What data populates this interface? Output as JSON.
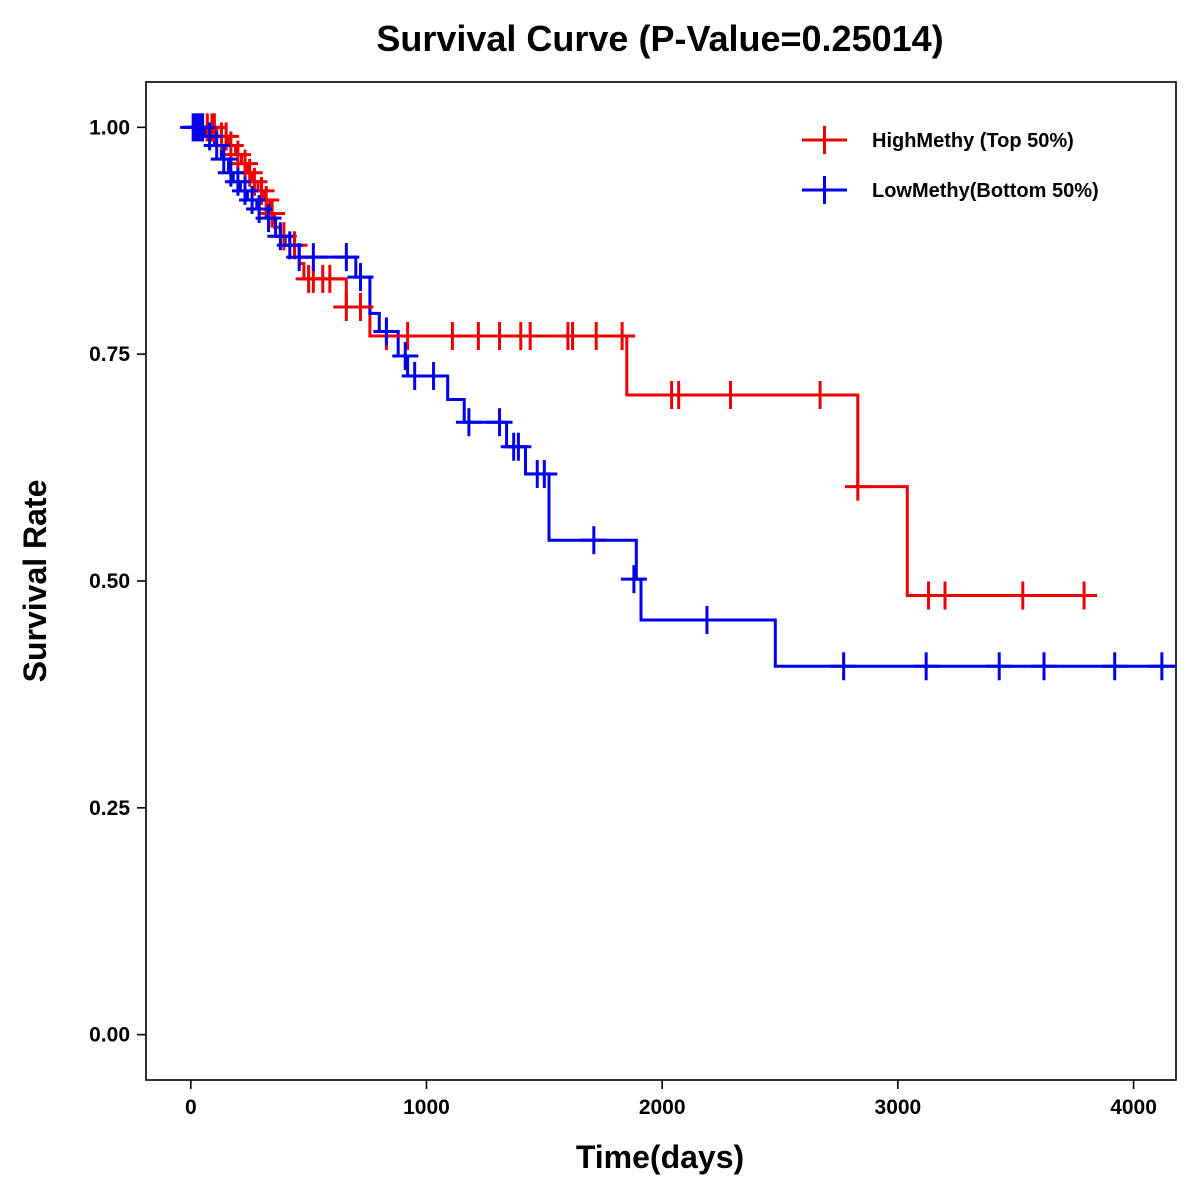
{
  "chart_data": {
    "type": "line",
    "subtype": "kaplan-meier",
    "title": "Survival Curve (P-Value=0.25014)",
    "xlabel": "Time(days)",
    "ylabel": "Survival Rate",
    "xlim": [
      -190,
      4180
    ],
    "ylim": [
      -0.05,
      1.05
    ],
    "xticks": [
      0,
      1000,
      2000,
      3000,
      4000
    ],
    "xtick_labels": [
      "0",
      "1000",
      "2000",
      "3000",
      "4000"
    ],
    "yticks": [
      0.0,
      0.25,
      0.5,
      0.75,
      1.0
    ],
    "ytick_labels": [
      "0.00",
      "0.25",
      "0.50",
      "0.75",
      "1.00"
    ],
    "grid": false,
    "legend_position": "top-right",
    "series": [
      {
        "name": "HighMethy (Top 50%)",
        "color": "#ee0000",
        "steps": [
          [
            0,
            1.0
          ],
          [
            110,
            0.99
          ],
          [
            160,
            0.98
          ],
          [
            190,
            0.97
          ],
          [
            215,
            0.96
          ],
          [
            240,
            0.95
          ],
          [
            260,
            0.94
          ],
          [
            285,
            0.93
          ],
          [
            310,
            0.92
          ],
          [
            335,
            0.905
          ],
          [
            355,
            0.89
          ],
          [
            380,
            0.88
          ],
          [
            420,
            0.87
          ],
          [
            460,
            0.85
          ],
          [
            480,
            0.833
          ],
          [
            660,
            0.802
          ],
          [
            760,
            0.77
          ],
          [
            1850,
            0.705
          ],
          [
            2830,
            0.604
          ],
          [
            3040,
            0.484
          ],
          [
            3820,
            0.484
          ]
        ],
        "censored": [
          [
            30,
            1.0
          ],
          [
            50,
            1.0
          ],
          [
            70,
            1.0
          ],
          [
            90,
            1.0
          ],
          [
            100,
            1.0
          ],
          [
            130,
            0.99
          ],
          [
            150,
            0.99
          ],
          [
            170,
            0.98
          ],
          [
            200,
            0.97
          ],
          [
            230,
            0.96
          ],
          [
            250,
            0.95
          ],
          [
            270,
            0.94
          ],
          [
            300,
            0.93
          ],
          [
            320,
            0.92
          ],
          [
            345,
            0.905
          ],
          [
            395,
            0.88
          ],
          [
            440,
            0.87
          ],
          [
            500,
            0.833
          ],
          [
            520,
            0.833
          ],
          [
            560,
            0.833
          ],
          [
            590,
            0.833
          ],
          [
            660,
            0.802
          ],
          [
            720,
            0.802
          ],
          [
            830,
            0.77
          ],
          [
            920,
            0.77
          ],
          [
            1110,
            0.77
          ],
          [
            1220,
            0.77
          ],
          [
            1310,
            0.77
          ],
          [
            1400,
            0.77
          ],
          [
            1440,
            0.77
          ],
          [
            1600,
            0.77
          ],
          [
            1620,
            0.77
          ],
          [
            1720,
            0.77
          ],
          [
            1830,
            0.77
          ],
          [
            2040,
            0.705
          ],
          [
            2070,
            0.705
          ],
          [
            2290,
            0.705
          ],
          [
            2670,
            0.705
          ],
          [
            2830,
            0.604
          ],
          [
            3130,
            0.484
          ],
          [
            3200,
            0.484
          ],
          [
            3530,
            0.484
          ],
          [
            3790,
            0.484
          ]
        ]
      },
      {
        "name": "LowMethy(Bottom 50%)",
        "color": "#0000ee",
        "steps": [
          [
            0,
            1.0
          ],
          [
            60,
            0.99
          ],
          [
            100,
            0.98
          ],
          [
            130,
            0.965
          ],
          [
            160,
            0.95
          ],
          [
            180,
            0.94
          ],
          [
            210,
            0.93
          ],
          [
            240,
            0.92
          ],
          [
            280,
            0.91
          ],
          [
            320,
            0.9
          ],
          [
            360,
            0.88
          ],
          [
            400,
            0.87
          ],
          [
            440,
            0.857
          ],
          [
            700,
            0.835
          ],
          [
            760,
            0.795
          ],
          [
            800,
            0.775
          ],
          [
            880,
            0.748
          ],
          [
            920,
            0.726
          ],
          [
            1090,
            0.7
          ],
          [
            1160,
            0.675
          ],
          [
            1340,
            0.648
          ],
          [
            1420,
            0.618
          ],
          [
            1520,
            0.545
          ],
          [
            1890,
            0.502
          ],
          [
            1910,
            0.457
          ],
          [
            2480,
            0.406
          ],
          [
            4180,
            0.406
          ]
        ],
        "censored": [
          [
            10,
            1.0
          ],
          [
            20,
            1.0
          ],
          [
            30,
            1.0
          ],
          [
            40,
            1.0
          ],
          [
            50,
            1.0
          ],
          [
            80,
            0.99
          ],
          [
            110,
            0.98
          ],
          [
            140,
            0.965
          ],
          [
            170,
            0.95
          ],
          [
            200,
            0.94
          ],
          [
            230,
            0.93
          ],
          [
            260,
            0.92
          ],
          [
            290,
            0.91
          ],
          [
            330,
            0.9
          ],
          [
            380,
            0.88
          ],
          [
            420,
            0.87
          ],
          [
            460,
            0.857
          ],
          [
            520,
            0.857
          ],
          [
            660,
            0.857
          ],
          [
            720,
            0.835
          ],
          [
            830,
            0.775
          ],
          [
            910,
            0.748
          ],
          [
            950,
            0.726
          ],
          [
            1030,
            0.726
          ],
          [
            1180,
            0.675
          ],
          [
            1310,
            0.675
          ],
          [
            1370,
            0.648
          ],
          [
            1390,
            0.648
          ],
          [
            1470,
            0.618
          ],
          [
            1500,
            0.618
          ],
          [
            1710,
            0.545
          ],
          [
            1880,
            0.502
          ],
          [
            2190,
            0.457
          ],
          [
            2770,
            0.406
          ],
          [
            3120,
            0.406
          ],
          [
            3430,
            0.406
          ],
          [
            3620,
            0.406
          ],
          [
            3920,
            0.406
          ],
          [
            4120,
            0.406
          ]
        ]
      }
    ]
  }
}
